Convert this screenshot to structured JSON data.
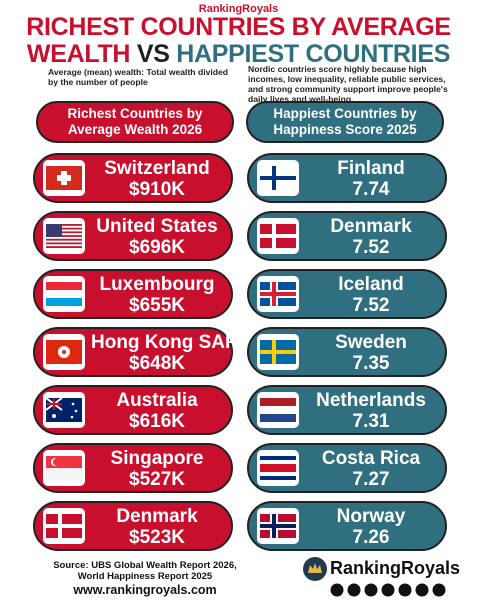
{
  "brand": "RankingRoyals",
  "title": {
    "line1": "RICHEST COUNTRIES BY AVERAGE",
    "wealth": "WEALTH",
    "vs": "VS",
    "happiest": "HAPPIEST COUNTRIES"
  },
  "left_note": "Average (mean) wealth: Total wealth divided by the number of people",
  "right_note": "Nordic countries score highly because high incomes, low inequality, reliable public services, and strong community support improve people's daily lives and well-being.",
  "left_header": "Richest Countries by Average Wealth 2026",
  "right_header": "Happiest Countries by Happiness Score 2025",
  "richest": [
    {
      "country": "Switzerland",
      "value": "$910K"
    },
    {
      "country": "United States",
      "value": "$696K"
    },
    {
      "country": "Luxembourg",
      "value": "$655K"
    },
    {
      "country": "Hong Kong SAR",
      "value": "$648K"
    },
    {
      "country": "Australia",
      "value": "$616K"
    },
    {
      "country": "Singapore",
      "value": "$527K"
    },
    {
      "country": "Denmark",
      "value": "$523K"
    }
  ],
  "happiest": [
    {
      "country": "Finland",
      "value": 7.74
    },
    {
      "country": "Denmark",
      "value": 7.52
    },
    {
      "country": "Iceland",
      "value": 7.52
    },
    {
      "country": "Sweden",
      "value": 7.35
    },
    {
      "country": "Netherlands",
      "value": 7.31
    },
    {
      "country": "Costa Rica",
      "value": 7.27
    },
    {
      "country": "Norway",
      "value": 7.26
    }
  ],
  "source": "Source: UBS Global Wealth Report 2026, World Happiness Report 2025",
  "website": "www.rankingroyals.com",
  "logo": "RankingRoyals"
}
